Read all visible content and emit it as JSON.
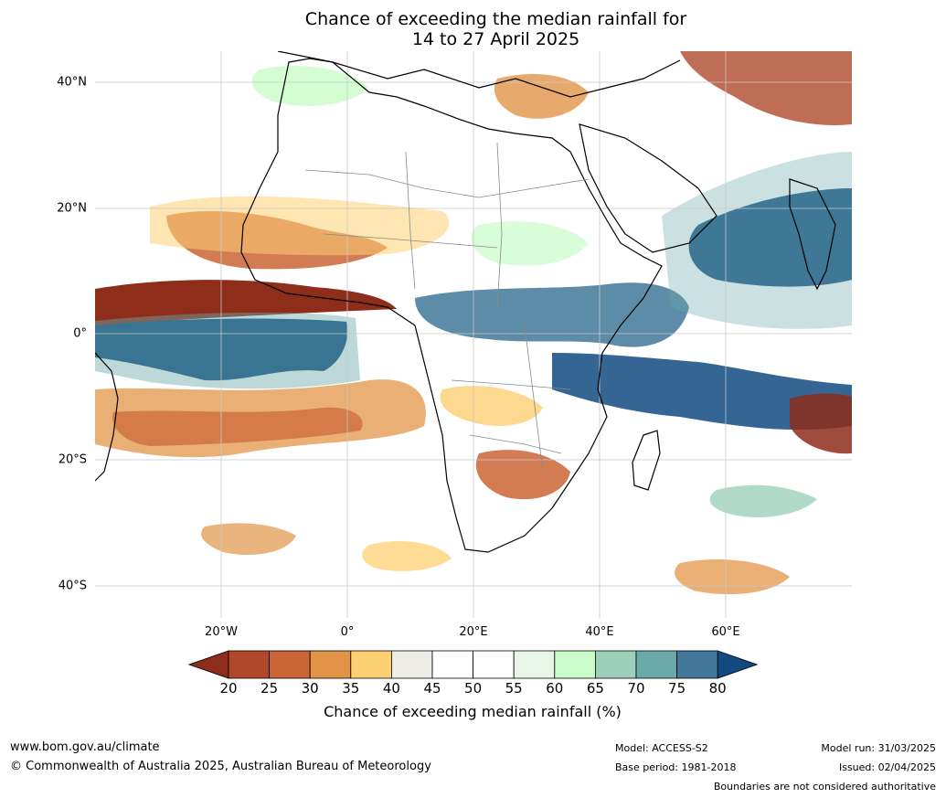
{
  "title": {
    "line1": "Chance of exceeding the median rainfall for",
    "line2": "14 to 27 April 2025"
  },
  "map": {
    "lat_labels": [
      "40°N",
      "20°N",
      "0°",
      "20°S",
      "40°S"
    ],
    "lon_labels": [
      "20°W",
      "0°",
      "20°E",
      "40°E",
      "60°E"
    ],
    "land_outline_color": "#000000",
    "border_color": "#8a8a8a",
    "gridline_color": "#c8c8c8"
  },
  "legend": {
    "ticks": [
      "20",
      "25",
      "30",
      "35",
      "40",
      "45",
      "50",
      "55",
      "60",
      "65",
      "70",
      "75",
      "80"
    ],
    "colors": [
      "#8e2d1a",
      "#b0482a",
      "#cb6536",
      "#e19447",
      "#fdd073",
      "#eeece6",
      "#ffffff",
      "#ffffff",
      "#e8f6e9",
      "#c9fcc9",
      "#9dd0ba",
      "#6ba8a9",
      "#417899",
      "#114a80"
    ],
    "label": "Chance of exceeding median rainfall (%)"
  },
  "footer": {
    "website": "www.bom.gov.au/climate",
    "copyright": "© Commonwealth of Australia 2025, Australian Bureau of Meteorology",
    "model": "Model: ACCESS-S2",
    "base_period": "Base period: 1981-2018",
    "model_run": "Model run: 31/03/2025",
    "issued": "Issued: 02/04/2025",
    "boundaries_note": "Boundaries are not considered authoritative"
  }
}
